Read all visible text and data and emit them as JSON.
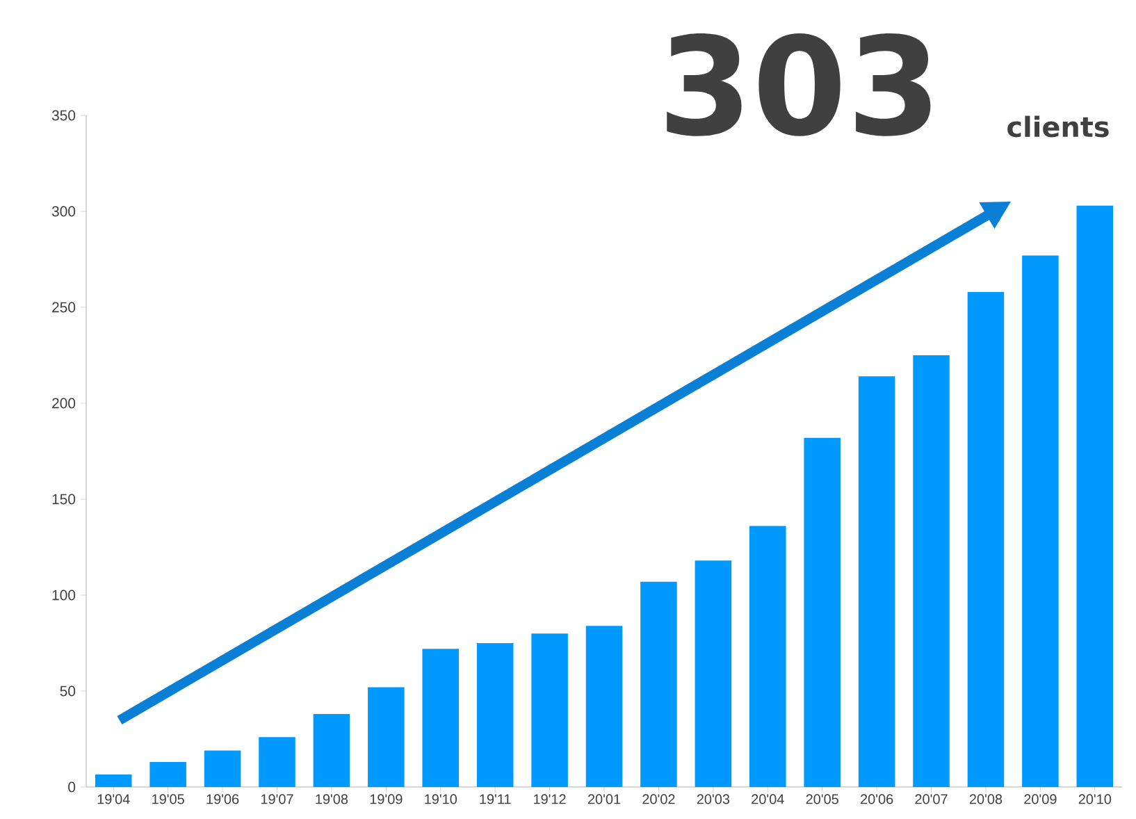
{
  "chart_data": {
    "type": "bar",
    "annotations": [
      "303",
      "clients"
    ],
    "categories": [
      "19'04",
      "19'05",
      "19'06",
      "19'07",
      "19'08",
      "19'09",
      "19'10",
      "19'11",
      "19'12",
      "20'01",
      "20'02",
      "20'03",
      "20'04",
      "20'05",
      "20'06",
      "20'07",
      "20'08",
      "20'09",
      "20'10"
    ],
    "values": [
      6.5,
      13,
      19,
      26,
      38,
      52,
      72,
      75,
      80,
      84,
      107,
      118,
      136,
      182,
      214,
      225,
      258,
      277,
      303
    ],
    "color": "#0099ff",
    "ylim": [
      0,
      350
    ],
    "yticks": [
      0,
      50,
      100,
      150,
      200,
      250,
      300,
      350
    ]
  }
}
